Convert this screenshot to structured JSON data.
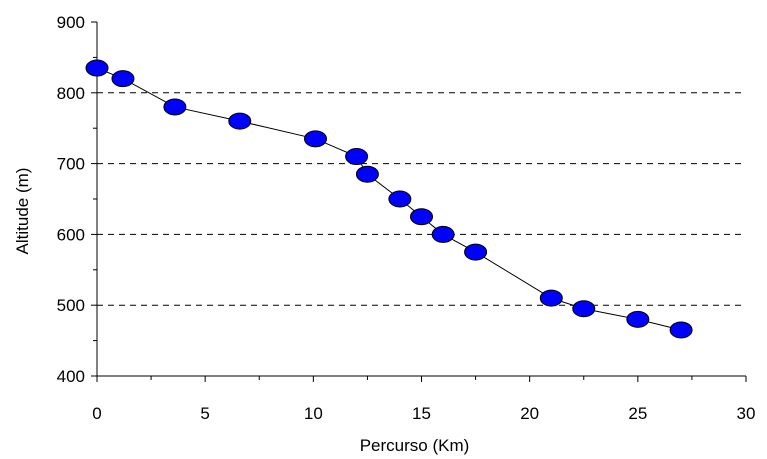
{
  "chart_data": {
    "type": "line",
    "title": "",
    "xlabel": "Percurso (Km)",
    "ylabel": "Altitude (m)",
    "xlim": [
      0,
      30
    ],
    "ylim": [
      400,
      900
    ],
    "xticks": [
      0,
      5,
      10,
      15,
      20,
      25,
      30
    ],
    "yticks": [
      400,
      500,
      600,
      700,
      800,
      900
    ],
    "x_minor_step": 2.5,
    "y_minor_step": 50,
    "grid": "horizontal dashed",
    "legend": "none",
    "series": [
      {
        "marker": "ellipse",
        "marker_color": "#0000ff",
        "line_color": "#000000",
        "x": [
          0,
          1.2,
          3.6,
          6.6,
          10.1,
          12.0,
          12.5,
          14.0,
          15.0,
          16.0,
          17.5,
          21.0,
          22.5,
          25.0,
          27.0
        ],
        "y": [
          835,
          820,
          780,
          760,
          735,
          710,
          685,
          650,
          625,
          600,
          575,
          510,
          495,
          480,
          465
        ]
      }
    ]
  }
}
